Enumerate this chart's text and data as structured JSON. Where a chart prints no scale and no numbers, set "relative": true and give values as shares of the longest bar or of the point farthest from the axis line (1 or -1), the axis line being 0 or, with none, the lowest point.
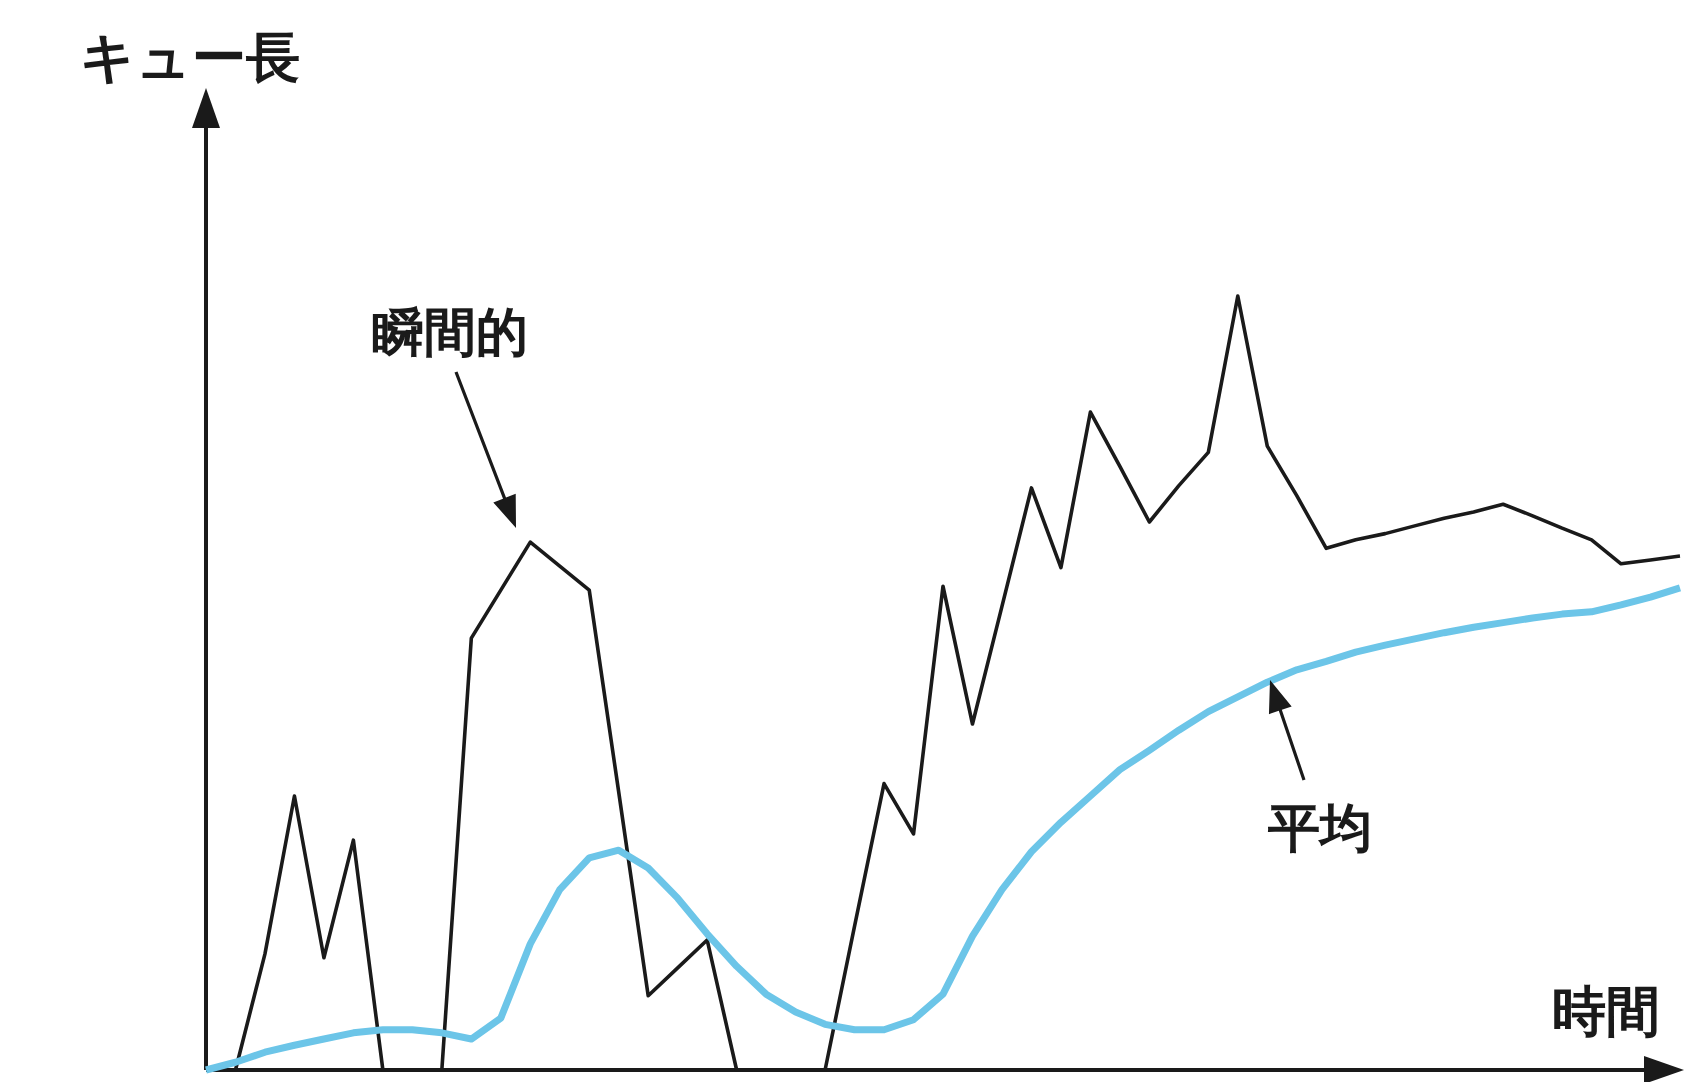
{
  "chart_data": {
    "type": "line",
    "relative": true,
    "xlabel": "時間",
    "ylabel": "キュー長",
    "categories": [
      null,
      null,
      null,
      null,
      null,
      null,
      null,
      null,
      null,
      null,
      null,
      null,
      null,
      null,
      null,
      null,
      null,
      null,
      null,
      null,
      null,
      null,
      null,
      null,
      null,
      null,
      null,
      null,
      null,
      null,
      null,
      null,
      null,
      null,
      null,
      null,
      null,
      null,
      null,
      null,
      null,
      null,
      null,
      null,
      null,
      null,
      null,
      null,
      null,
      null,
      null
    ],
    "tick_labels": false,
    "grid": false,
    "legend": false,
    "annotations": [
      "瞬間的",
      "平均"
    ],
    "marker": "none",
    "line_style": "solid",
    "series": [
      {
        "color": "#1a1a1a",
        "values": [
          0,
          0,
          0.15,
          0.354,
          0.145,
          0.297,
          0,
          0,
          0,
          0.558,
          0.62,
          0.682,
          0.651,
          0.62,
          0.359,
          0.096,
          0.132,
          0.168,
          0,
          0,
          0,
          0,
          0.186,
          0.37,
          0.305,
          0.625,
          0.447,
          0.599,
          0.752,
          0.649,
          0.85,
          0.78,
          0.708,
          0.755,
          0.798,
          1,
          0.806,
          0.742,
          0.674,
          0.685,
          0.693,
          0.703,
          0.713,
          0.721,
          0.731,
          0.716,
          0.7,
          0.685,
          0.654,
          0.659,
          0.664
        ]
      },
      {
        "color": "#6cc5e8",
        "values": [
          0,
          0.01,
          0.023,
          0.032,
          0.04,
          0.048,
          0.052,
          0.052,
          0.048,
          0.04,
          0.067,
          0.163,
          0.233,
          0.274,
          0.284,
          0.261,
          0.222,
          0.176,
          0.134,
          0.098,
          0.075,
          0.059,
          0.052,
          0.052,
          0.065,
          0.098,
          0.173,
          0.233,
          0.282,
          0.32,
          0.354,
          0.388,
          0.413,
          0.439,
          0.463,
          0.482,
          0.501,
          0.517,
          0.528,
          0.54,
          0.549,
          0.557,
          0.565,
          0.572,
          0.578,
          0.584,
          0.589,
          0.592,
          0.601,
          0.611,
          0.623
        ]
      }
    ]
  }
}
